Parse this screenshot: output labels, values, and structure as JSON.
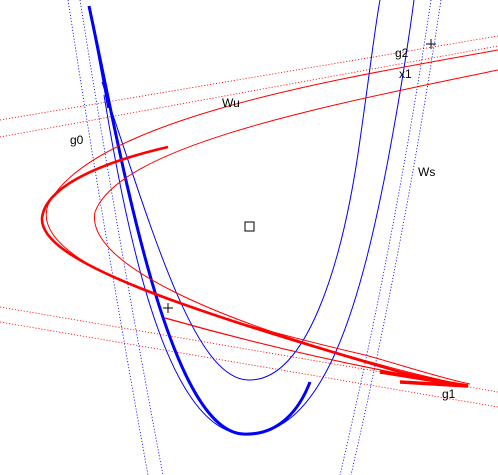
{
  "colors": {
    "background": "#ffffff",
    "unstable_manifold": "#ff0000",
    "stable_manifold": "#0000ff",
    "markers": "#000000"
  },
  "labels": {
    "wu": "Wu",
    "ws": "Ws",
    "g0": "g0",
    "g1": "g1",
    "g2": "g2",
    "x1": "x1"
  },
  "markers": {
    "square": "square-marker",
    "plus": "plus-marker"
  }
}
